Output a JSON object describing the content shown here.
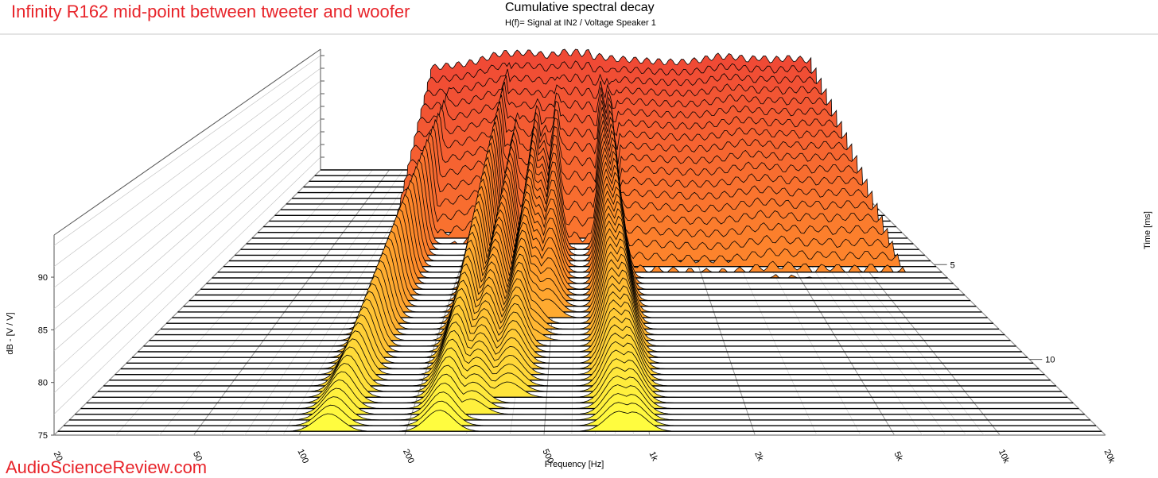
{
  "overlay_title": "Infinity R162 mid-point between tweeter and woofer",
  "watermark": "AudioScienceReview.com",
  "chart_data": {
    "type": "waterfall",
    "title": "Cumulative spectral decay",
    "subtitle": "H(f)= Signal at IN2 / Voltage Speaker 1",
    "xlabel": "Frequency [Hz]",
    "ylabel": "dB - [V / V]",
    "zlabel": "Time [ms]",
    "x_scale": "log",
    "xlim": [
      20,
      20000
    ],
    "ylim": [
      75,
      94
    ],
    "zlim": [
      0,
      14
    ],
    "x_ticks": [
      {
        "value": 20,
        "label": "20"
      },
      {
        "value": 50,
        "label": "50"
      },
      {
        "value": 100,
        "label": "100"
      },
      {
        "value": 200,
        "label": "200"
      },
      {
        "value": 500,
        "label": "500"
      },
      {
        "value": 1000,
        "label": "1k"
      },
      {
        "value": 2000,
        "label": "2k"
      },
      {
        "value": 5000,
        "label": "5k"
      },
      {
        "value": 10000,
        "label": "10k"
      },
      {
        "value": 20000,
        "label": "20k"
      }
    ],
    "y_ticks": [
      {
        "value": 75,
        "label": "75"
      },
      {
        "value": 80,
        "label": "80"
      },
      {
        "value": 85,
        "label": "85"
      },
      {
        "value": 90,
        "label": "90"
      }
    ],
    "z_ticks": [
      {
        "value": 5,
        "label": "5"
      },
      {
        "value": 10,
        "label": "10"
      }
    ],
    "colors": {
      "early": "#f04a35",
      "mid": "#ff8c2a",
      "late": "#ffff40"
    },
    "slice_times_ms": [
      0,
      0.3,
      0.6,
      0.9,
      1.2,
      1.5,
      1.8,
      2.1,
      2.4,
      2.7
    ],
    "initial_response": {
      "freq_hz": [
        85,
        100,
        130,
        160,
        190,
        210,
        230,
        260,
        300,
        350,
        400,
        450,
        500,
        560,
        600,
        650,
        700,
        760,
        800,
        900,
        1000,
        1200,
        1500,
        2000,
        2500,
        3000,
        3500,
        4000,
        5000,
        6000,
        7000,
        8000,
        10000,
        12000,
        14000
      ],
      "db": [
        91.0,
        91.3,
        91.6,
        92.1,
        92.8,
        93.2,
        93.4,
        93.3,
        93.5,
        93.4,
        93.0,
        93.2,
        93.6,
        93.4,
        93.7,
        93.3,
        93.6,
        92.8,
        92.9,
        92.7,
        92.5,
        92.4,
        92.2,
        92.0,
        92.0,
        92.2,
        92.6,
        92.9,
        92.8,
        92.4,
        92.7,
        92.3,
        92.6,
        92.4,
        92.2
      ]
    },
    "resonances": [
      {
        "freq_hz": 120,
        "peak_db": 90.0,
        "decay_ms": 14
      },
      {
        "freq_hz": 250,
        "peak_db": 93.0,
        "decay_ms": 14
      },
      {
        "freq_hz": 300,
        "peak_db": 89.0,
        "decay_ms": 13
      },
      {
        "freq_hz": 380,
        "peak_db": 90.5,
        "decay_ms": 12
      },
      {
        "freq_hz": 420,
        "peak_db": 89.0,
        "decay_ms": 9
      },
      {
        "freq_hz": 480,
        "peak_db": 92.5,
        "decay_ms": 8
      },
      {
        "freq_hz": 820,
        "peak_db": 92.0,
        "decay_ms": 14
      },
      {
        "freq_hz": 900,
        "peak_db": 91.5,
        "decay_ms": 14
      }
    ]
  }
}
